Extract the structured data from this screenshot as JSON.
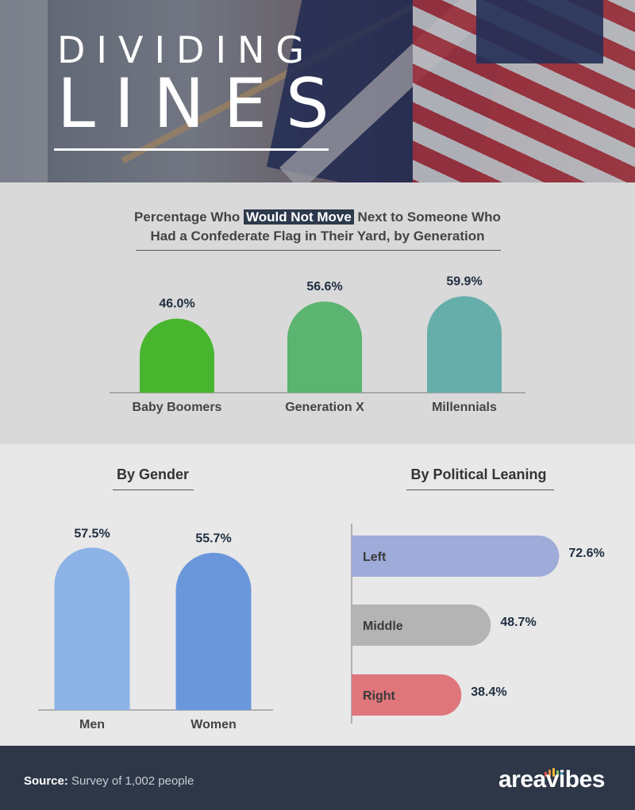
{
  "header": {
    "title_line1": "DIVIDING",
    "title_line2": "LINES"
  },
  "generation_section": {
    "title_pre": "Percentage Who ",
    "title_highlight": "Would Not Move",
    "title_post": " Next to Someone Who",
    "title_line2": "Had a Confederate Flag in Their Yard, by Generation"
  },
  "gender_section": {
    "title": "By Gender"
  },
  "political_section": {
    "title": "By Political Leaning"
  },
  "chart_data": [
    {
      "type": "bar",
      "categories": [
        "Baby Boomers",
        "Generation X",
        "Millennials"
      ],
      "values": [
        46.0,
        56.6,
        59.9
      ],
      "value_labels": [
        "46.0%",
        "56.6%",
        "59.9%"
      ],
      "colors": [
        "#48b52f",
        "#5bb46f",
        "#66aeaa"
      ]
    },
    {
      "type": "bar",
      "title": "By Gender",
      "categories": [
        "Men",
        "Women"
      ],
      "values": [
        57.5,
        55.7
      ],
      "value_labels": [
        "57.5%",
        "55.7%"
      ],
      "colors": [
        "#8db3e6",
        "#6a97dc"
      ]
    },
    {
      "type": "bar",
      "orientation": "horizontal",
      "title": "By Political Leaning",
      "categories": [
        "Left",
        "Middle",
        "Right"
      ],
      "values": [
        72.6,
        48.7,
        38.4
      ],
      "value_labels": [
        "72.6%",
        "48.7%",
        "38.4%"
      ],
      "colors": [
        "#9fabd8",
        "#b4b4b4",
        "#de767b"
      ]
    }
  ],
  "footer": {
    "source_label": "Source:",
    "source_text": " Survey of 1,002 people",
    "brand": "areavibes",
    "brand_bar_colors": [
      "#e8554e",
      "#f08a3c",
      "#f5b63a",
      "#7cc46b",
      "#4aa8d8"
    ]
  }
}
